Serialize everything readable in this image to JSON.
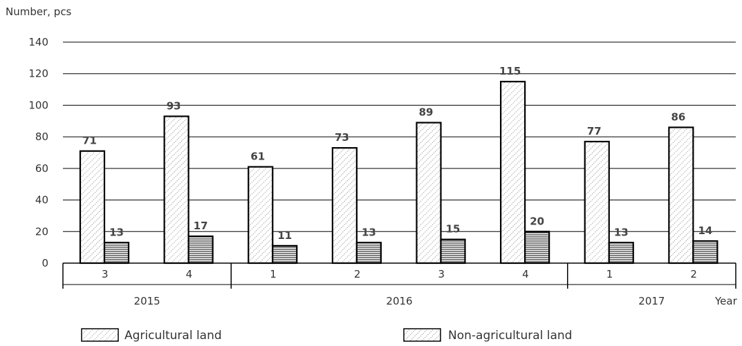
{
  "chart_data": {
    "type": "bar",
    "ylabel": "Number, pcs",
    "xlabel": "Year",
    "ylim": [
      0,
      140
    ],
    "yticks": [
      0,
      20,
      40,
      60,
      80,
      100,
      120,
      140
    ],
    "grid": true,
    "legend_position": "bottom",
    "categories": [
      "3",
      "4",
      "1",
      "2",
      "3",
      "4",
      "1",
      "2"
    ],
    "groups": [
      {
        "label": "2015",
        "categories": [
          "3",
          "4"
        ]
      },
      {
        "label": "2016",
        "categories": [
          "1",
          "2",
          "3",
          "4"
        ]
      },
      {
        "label": "2017",
        "categories": [
          "1",
          "2"
        ]
      }
    ],
    "series": [
      {
        "name": "Agricultural land",
        "values": [
          71,
          93,
          61,
          73,
          89,
          115,
          77,
          86
        ],
        "pattern": "diagonal-dots"
      },
      {
        "name": "Non-agricultural land",
        "values": [
          13,
          17,
          11,
          13,
          15,
          20,
          13,
          14
        ],
        "pattern": "horizontal-lines"
      }
    ],
    "colors": {
      "bar_stroke": "#000000",
      "grid": "#000000",
      "text": "#333333"
    }
  }
}
